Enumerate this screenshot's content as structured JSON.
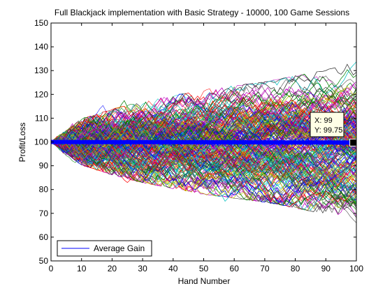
{
  "chart_data": {
    "type": "line",
    "title": "Full Blackjack implementation with Basic Strategy - 10000, 100 Game Sessions",
    "xlabel": "Hand Number",
    "ylabel": "Profit/Loss",
    "xlim": [
      0,
      100
    ],
    "ylim": [
      50,
      150
    ],
    "xticks": [
      "0",
      "10",
      "20",
      "30",
      "40",
      "50",
      "60",
      "70",
      "80",
      "90",
      "100"
    ],
    "yticks": [
      "50",
      "60",
      "70",
      "80",
      "90",
      "100",
      "110",
      "120",
      "130",
      "140",
      "150"
    ],
    "grid": false,
    "session_count": 10000,
    "hands_per_session": 100,
    "starting_bankroll": 100,
    "envelope": {
      "x": [
        0,
        10,
        20,
        30,
        40,
        50,
        60,
        70,
        80,
        90,
        100
      ],
      "upper": [
        100,
        112,
        117,
        121,
        124,
        127,
        129,
        131,
        134,
        137,
        141
      ],
      "lower": [
        100,
        88,
        83,
        79,
        76,
        73,
        71,
        69,
        66,
        63,
        58
      ]
    },
    "series_colors": [
      "#0000ff",
      "#008000",
      "#ff0000",
      "#00bfbf",
      "#bf00bf",
      "#bfbf00",
      "#404040"
    ],
    "series": [
      {
        "name": "Average Gain",
        "color": "#0000ff",
        "x": [
          0,
          10,
          20,
          30,
          40,
          50,
          60,
          70,
          80,
          90,
          99,
          100
        ],
        "values": [
          100,
          99.98,
          99.95,
          99.93,
          99.9,
          99.88,
          99.85,
          99.83,
          99.8,
          99.78,
          99.75,
          99.75
        ]
      }
    ],
    "legend": {
      "location": "bottom-left",
      "entries": [
        "Average Gain"
      ]
    },
    "datatip": {
      "x_label": "X: 99",
      "y_label": "Y: 99.75",
      "x": 99,
      "y": 99.75
    }
  }
}
